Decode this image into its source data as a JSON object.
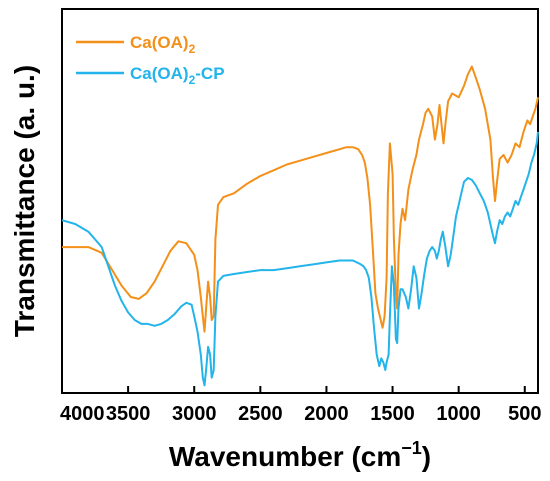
{
  "chart_data": {
    "type": "line",
    "xlabel_main": "Wavenumber (cm",
    "xlabel_sup": "−1",
    "xlabel_tail": ")",
    "ylabel": "Transmittance (a. u.)",
    "xlim": [
      4000,
      400
    ],
    "x_reversed": true,
    "x_ticks": [
      4000,
      3500,
      3000,
      2500,
      2000,
      1500,
      1000,
      500
    ],
    "y_ticks_labeled": false,
    "grid": false,
    "legend_position": "top-left",
    "series": [
      {
        "name_main": "Ca(OA)",
        "name_sub": "2",
        "name_tail": "",
        "color": "#f39019",
        "x": [
          4000,
          3900,
          3800,
          3700,
          3620,
          3550,
          3480,
          3420,
          3360,
          3300,
          3240,
          3180,
          3120,
          3060,
          3000,
          2975,
          2950,
          2935,
          2922,
          2910,
          2895,
          2880,
          2868,
          2853,
          2840,
          2820,
          2780,
          2700,
          2600,
          2500,
          2400,
          2300,
          2200,
          2100,
          2000,
          1900,
          1850,
          1800,
          1760,
          1730,
          1710,
          1690,
          1670,
          1650,
          1630,
          1610,
          1590,
          1575,
          1560,
          1545,
          1535,
          1520,
          1500,
          1490,
          1475,
          1465,
          1455,
          1440,
          1425,
          1405,
          1380,
          1350,
          1320,
          1300,
          1270,
          1250,
          1230,
          1200,
          1180,
          1160,
          1145,
          1130,
          1115,
          1100,
          1080,
          1050,
          1000,
          960,
          930,
          900,
          870,
          840,
          800,
          760,
          740,
          725,
          710,
          690,
          660,
          630,
          600,
          570,
          540,
          510,
          480,
          460,
          440,
          420,
          400
        ],
        "y": [
          0.38,
          0.38,
          0.38,
          0.365,
          0.32,
          0.28,
          0.25,
          0.245,
          0.26,
          0.29,
          0.33,
          0.37,
          0.395,
          0.39,
          0.36,
          0.32,
          0.25,
          0.2,
          0.16,
          0.22,
          0.29,
          0.25,
          0.19,
          0.2,
          0.4,
          0.49,
          0.51,
          0.52,
          0.545,
          0.565,
          0.58,
          0.595,
          0.605,
          0.615,
          0.625,
          0.635,
          0.64,
          0.64,
          0.635,
          0.62,
          0.6,
          0.56,
          0.49,
          0.38,
          0.26,
          0.22,
          0.19,
          0.17,
          0.2,
          0.3,
          0.52,
          0.65,
          0.57,
          0.4,
          0.26,
          0.22,
          0.36,
          0.44,
          0.48,
          0.45,
          0.53,
          0.58,
          0.62,
          0.66,
          0.7,
          0.73,
          0.74,
          0.72,
          0.66,
          0.7,
          0.75,
          0.7,
          0.65,
          0.7,
          0.76,
          0.78,
          0.77,
          0.8,
          0.83,
          0.85,
          0.82,
          0.79,
          0.74,
          0.66,
          0.56,
          0.5,
          0.55,
          0.61,
          0.62,
          0.6,
          0.62,
          0.65,
          0.64,
          0.68,
          0.71,
          0.7,
          0.72,
          0.74,
          0.77
        ]
      },
      {
        "name_main": "Ca(OA)",
        "name_sub": "2",
        "name_tail": "-CP",
        "color": "#22b4ea",
        "x": [
          4000,
          3900,
          3850,
          3800,
          3750,
          3700,
          3650,
          3600,
          3550,
          3500,
          3450,
          3400,
          3350,
          3300,
          3250,
          3200,
          3150,
          3100,
          3060,
          3020,
          3000,
          2975,
          2950,
          2935,
          2922,
          2910,
          2895,
          2880,
          2868,
          2853,
          2840,
          2820,
          2780,
          2700,
          2600,
          2500,
          2400,
          2300,
          2200,
          2100,
          2000,
          1900,
          1850,
          1800,
          1770,
          1740,
          1720,
          1700,
          1680,
          1660,
          1640,
          1620,
          1600,
          1585,
          1570,
          1555,
          1545,
          1530,
          1520,
          1505,
          1490,
          1475,
          1465,
          1455,
          1440,
          1425,
          1400,
          1380,
          1360,
          1340,
          1320,
          1300,
          1280,
          1260,
          1240,
          1220,
          1200,
          1180,
          1165,
          1150,
          1135,
          1120,
          1100,
          1080,
          1060,
          1040,
          1020,
          1000,
          980,
          960,
          930,
          900,
          870,
          840,
          810,
          780,
          760,
          740,
          725,
          710,
          690,
          670,
          650,
          630,
          610,
          590,
          570,
          550,
          530,
          510,
          490,
          470,
          450,
          430,
          410,
          400
        ],
        "y": [
          0.45,
          0.44,
          0.43,
          0.42,
          0.4,
          0.38,
          0.33,
          0.28,
          0.24,
          0.21,
          0.19,
          0.18,
          0.18,
          0.175,
          0.18,
          0.19,
          0.205,
          0.225,
          0.235,
          0.23,
          0.2,
          0.16,
          0.1,
          0.04,
          0.02,
          0.06,
          0.12,
          0.1,
          0.04,
          0.06,
          0.2,
          0.29,
          0.305,
          0.31,
          0.315,
          0.32,
          0.32,
          0.325,
          0.33,
          0.335,
          0.34,
          0.345,
          0.345,
          0.345,
          0.34,
          0.335,
          0.33,
          0.32,
          0.3,
          0.25,
          0.17,
          0.1,
          0.07,
          0.09,
          0.08,
          0.06,
          0.08,
          0.1,
          0.2,
          0.33,
          0.28,
          0.14,
          0.13,
          0.22,
          0.27,
          0.27,
          0.25,
          0.22,
          0.27,
          0.33,
          0.3,
          0.22,
          0.26,
          0.31,
          0.35,
          0.37,
          0.38,
          0.37,
          0.35,
          0.37,
          0.4,
          0.42,
          0.38,
          0.33,
          0.36,
          0.41,
          0.46,
          0.49,
          0.52,
          0.55,
          0.56,
          0.555,
          0.54,
          0.52,
          0.5,
          0.47,
          0.44,
          0.41,
          0.39,
          0.42,
          0.45,
          0.44,
          0.46,
          0.47,
          0.46,
          0.48,
          0.5,
          0.49,
          0.51,
          0.53,
          0.55,
          0.57,
          0.6,
          0.62,
          0.65,
          0.68
        ]
      }
    ]
  }
}
